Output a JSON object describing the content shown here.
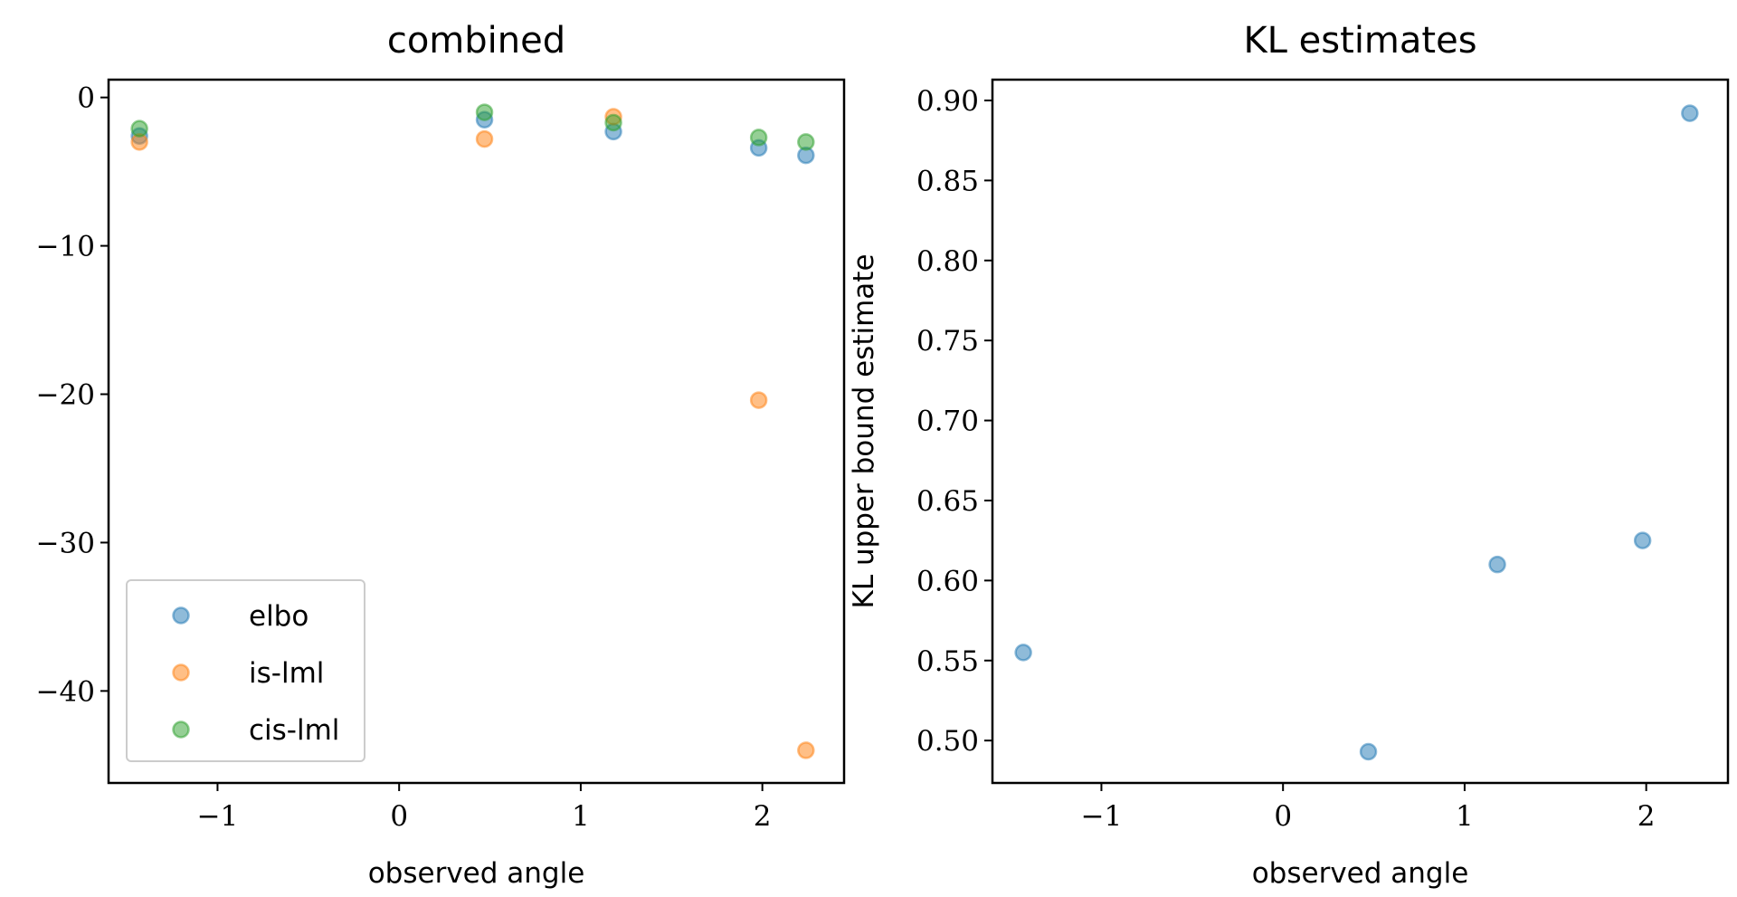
{
  "chart_data": [
    {
      "type": "scatter",
      "title": "combined",
      "xlabel": "observed angle",
      "ylabel": "",
      "xlim": [
        -1.6,
        2.45
      ],
      "ylim": [
        -46.2,
        1.2
      ],
      "xticks": [
        -1,
        0,
        1,
        2
      ],
      "xtick_labels": [
        "−1",
        "0",
        "1",
        "2"
      ],
      "yticks": [
        0,
        -10,
        -20,
        -30,
        -40
      ],
      "ytick_labels": [
        "0",
        "−10",
        "−20",
        "−30",
        "−40"
      ],
      "legend_position": "lower-left",
      "series": [
        {
          "name": "elbo",
          "color": "#1f77b4",
          "points": [
            [
              -1.43,
              -2.6
            ],
            [
              0.47,
              -1.5
            ],
            [
              1.18,
              -2.3
            ],
            [
              1.98,
              -3.4
            ],
            [
              2.24,
              -3.9
            ]
          ]
        },
        {
          "name": "is-lml",
          "color": "#ff7f0e",
          "points": [
            [
              -1.43,
              -3.0
            ],
            [
              0.47,
              -2.8
            ],
            [
              1.18,
              -1.3
            ],
            [
              1.98,
              -20.4
            ],
            [
              2.24,
              -44.0
            ]
          ]
        },
        {
          "name": "cis-lml",
          "color": "#2ca02c",
          "points": [
            [
              -1.43,
              -2.1
            ],
            [
              0.47,
              -1.0
            ],
            [
              1.18,
              -1.7
            ],
            [
              1.98,
              -2.7
            ],
            [
              2.24,
              -3.0
            ]
          ]
        }
      ]
    },
    {
      "type": "scatter",
      "title": "KL estimates",
      "xlabel": "observed angle",
      "ylabel": "KL upper bound estimate",
      "xlim": [
        -1.6,
        2.45
      ],
      "ylim": [
        0.4735,
        0.913
      ],
      "xticks": [
        -1,
        0,
        1,
        2
      ],
      "xtick_labels": [
        "−1",
        "0",
        "1",
        "2"
      ],
      "yticks": [
        0.5,
        0.55,
        0.6,
        0.65,
        0.7,
        0.75,
        0.8,
        0.85,
        0.9
      ],
      "ytick_labels": [
        "0.50",
        "0.55",
        "0.60",
        "0.65",
        "0.70",
        "0.75",
        "0.80",
        "0.85",
        "0.90"
      ],
      "series": [
        {
          "color": "#1f77b4",
          "points": [
            [
              -1.43,
              0.555
            ],
            [
              0.47,
              0.493
            ],
            [
              1.18,
              0.61
            ],
            [
              1.98,
              0.625
            ],
            [
              2.24,
              0.892
            ]
          ]
        }
      ]
    }
  ]
}
